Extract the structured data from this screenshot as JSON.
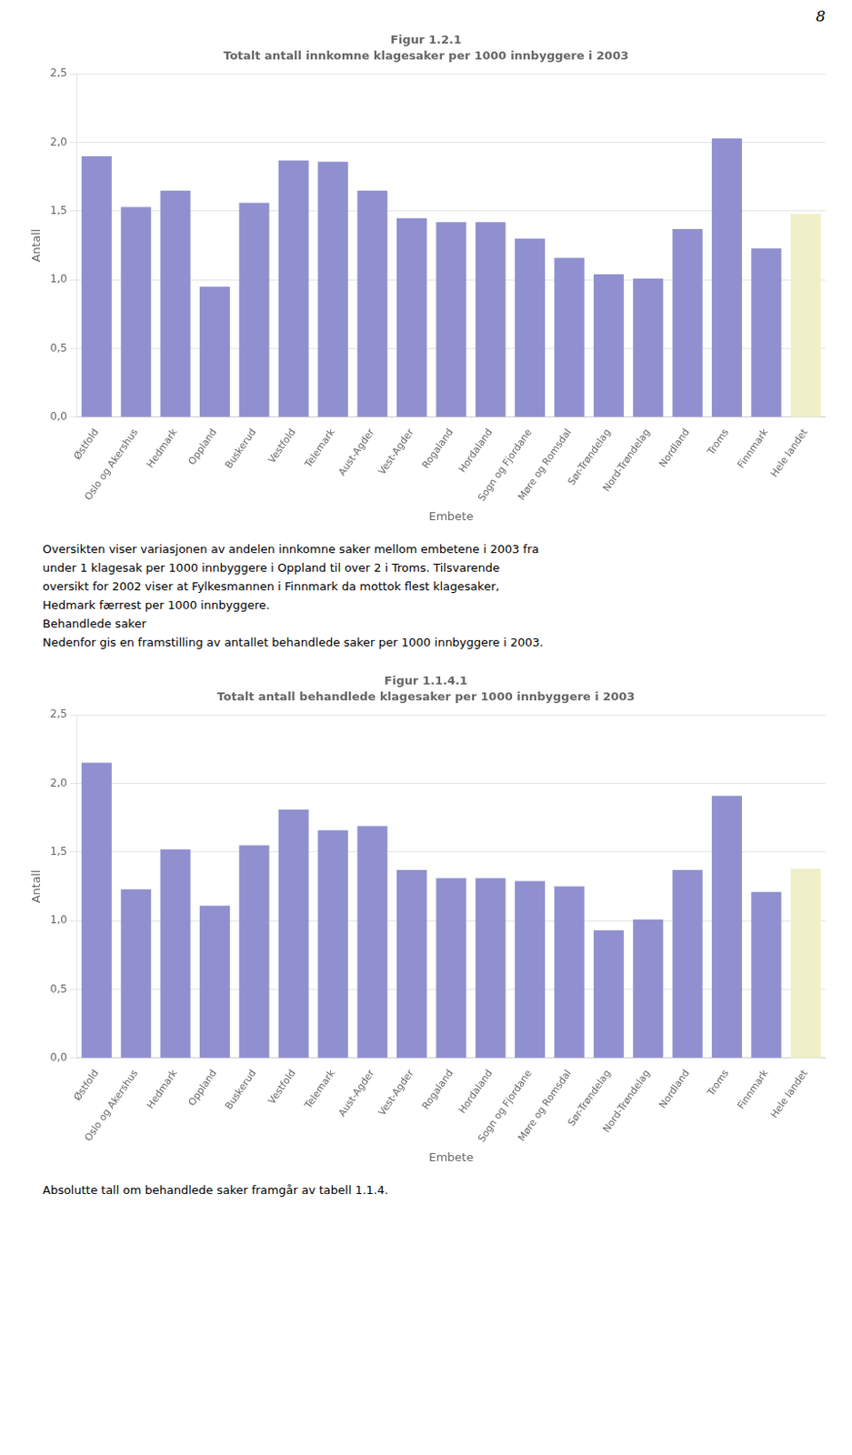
{
  "chart_data": [
    {
      "type": "bar",
      "title": "Figur 1.2.1",
      "subtitle": "Totalt antall innkomne klagesaker per 1000 innbyggere i 2003",
      "categories": [
        "Østfold",
        "Oslo og Akershus",
        "Hedmark",
        "Oppland",
        "Buskerud",
        "Vestfold",
        "Telemark",
        "Aust-Agder",
        "Vest-Agder",
        "Rogaland",
        "Hordaland",
        "Sogn og Fjordane",
        "Møre og Romsdal",
        "Sør-Trøndelag",
        "Nord-Trøndelag",
        "Nordland",
        "Troms",
        "Finnmark",
        "Hele landet"
      ],
      "values": [
        1.9,
        1.53,
        1.65,
        0.95,
        1.56,
        1.87,
        1.86,
        1.65,
        1.45,
        1.42,
        1.42,
        1.3,
        1.16,
        1.04,
        1.01,
        1.37,
        2.03,
        1.23,
        1.48
      ],
      "colors": [
        "#9090d0",
        "#9090d0",
        "#9090d0",
        "#9090d0",
        "#9090d0",
        "#9090d0",
        "#9090d0",
        "#9090d0",
        "#9090d0",
        "#9090d0",
        "#9090d0",
        "#9090d0",
        "#9090d0",
        "#9090d0",
        "#9090d0",
        "#9090d0",
        "#9090d0",
        "#9090d0",
        "#f0f0c8"
      ],
      "x_label": "Embete",
      "y_label": "Antall",
      "ylim": [
        0.0,
        2.5
      ],
      "yticks": [
        {
          "value": 0.0,
          "label": "0,0"
        },
        {
          "value": 0.5,
          "label": "0,5"
        },
        {
          "value": 1.0,
          "label": "1,0"
        },
        {
          "value": 1.5,
          "label": "1,5"
        },
        {
          "value": 2.0,
          "label": "2,0"
        },
        {
          "value": 2.5,
          "label": "2,5"
        }
      ],
      "grid": true,
      "annotations": [
        "8",
        "Oversikten viser variasjonen av andelen innkomne saker mellom embetene i 2003 fra",
        "under 1 klagesak per 1000 innbyggere i Oppland til over 2 i Troms. Tilsvarende",
        "oversikt for 2002 viser at Fylkesmannen i Finnmark da mottok flest klagesaker,",
        "Hedmark færrest per 1000 innbyggere.",
        "Behandlede saker",
        "Nedenfor gis en framstilling av antallet behandlede saker per 1000 innbyggere i 2003."
      ]
    },
    {
      "type": "bar",
      "title": "Figur 1.1.4.1",
      "subtitle": "Totalt antall behandlede klagesaker per 1000 innbyggere i 2003",
      "categories": [
        "Østfold",
        "Oslo og Akershus",
        "Hedmark",
        "Oppland",
        "Buskerud",
        "Vestfold",
        "Telemark",
        "Aust-Agder",
        "Vest-Agder",
        "Rogaland",
        "Hordaland",
        "Sogn og Fjordane",
        "Møre og Romsdal",
        "Sør-Trøndelag",
        "Nord-Trøndelag",
        "Nordland",
        "Troms",
        "Finnmark",
        "Hele landet"
      ],
      "values": [
        2.15,
        1.23,
        1.52,
        1.11,
        1.55,
        1.81,
        1.66,
        1.69,
        1.37,
        1.31,
        1.31,
        1.29,
        1.25,
        0.93,
        1.01,
        1.37,
        1.91,
        1.21,
        1.38
      ],
      "colors": [
        "#9090d0",
        "#9090d0",
        "#9090d0",
        "#9090d0",
        "#9090d0",
        "#9090d0",
        "#9090d0",
        "#9090d0",
        "#9090d0",
        "#9090d0",
        "#9090d0",
        "#9090d0",
        "#9090d0",
        "#9090d0",
        "#9090d0",
        "#9090d0",
        "#9090d0",
        "#9090d0",
        "#f0f0c8"
      ],
      "x_label": "Embete",
      "y_label": "Antall",
      "ylim": [
        0.0,
        2.5
      ],
      "yticks": [
        {
          "value": 0.0,
          "label": "0,0"
        },
        {
          "value": 0.5,
          "label": "0,5"
        },
        {
          "value": 1.0,
          "label": "1,0"
        },
        {
          "value": 1.5,
          "label": "1,5"
        },
        {
          "value": 2.0,
          "label": "2,0"
        },
        {
          "value": 2.5,
          "label": "2,5"
        }
      ],
      "grid": true,
      "annotations": [
        "Absolutte tall om behandlede saker framgår av tabell 1.1.4."
      ]
    }
  ]
}
